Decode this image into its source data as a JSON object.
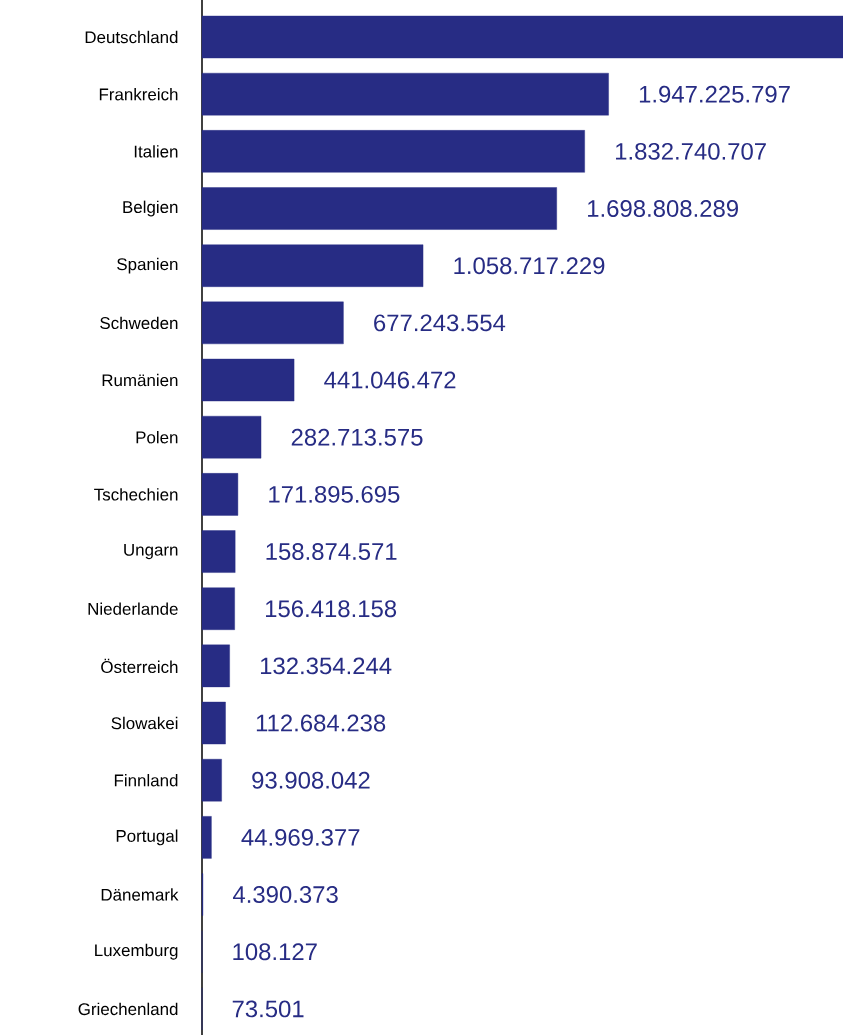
{
  "chart_data": {
    "type": "bar",
    "orientation": "horizontal",
    "categories": [
      "Deutschland",
      "Frankreich",
      "Italien",
      "Belgien",
      "Spanien",
      "Schweden",
      "Rumänien",
      "Polen",
      "Tschechien",
      "Ungarn",
      "Niederlande",
      "Österreich",
      "Slowakei",
      "Finnland",
      "Portugal",
      "Dänemark",
      "Luxemburg",
      "Griechenland"
    ],
    "values": [
      3070000000,
      1947225797,
      1832740707,
      1698808289,
      1058717229,
      677243554,
      441046472,
      282713575,
      171895695,
      158874571,
      156418158,
      132354244,
      112684238,
      93908042,
      44969377,
      4390373,
      108127,
      73501
    ],
    "value_labels": [
      null,
      "1.947.225.797",
      "1.832.740.707",
      "1.698.808.289",
      "1.058.717.229",
      "677.243.554",
      "441.046.472",
      "282.713.575",
      "171.895.695",
      "158.874.571",
      "156.418.158",
      "132.354.244",
      "112.684.238",
      "93.908.042",
      "44.969.377",
      "4.390.373",
      "108.127",
      "73.501"
    ],
    "color": "#272c84"
  }
}
